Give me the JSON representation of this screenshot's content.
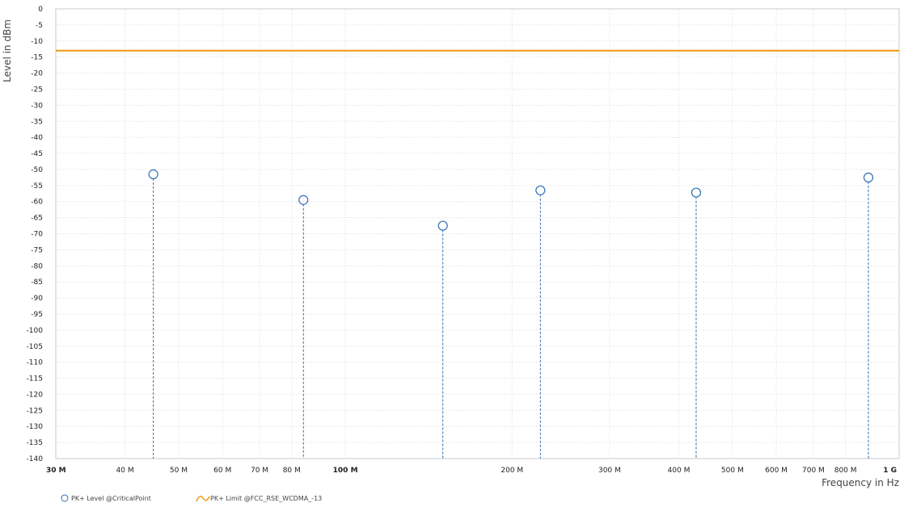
{
  "chart_data": {
    "type": "scatter",
    "x_scale": "log",
    "ylabel": "Level in dBm",
    "xlabel": "Frequency in Hz",
    "xlim": [
      30000000,
      1000000000
    ],
    "ylim": [
      -140,
      0
    ],
    "y_ticks": [
      0,
      -5,
      -10,
      -15,
      -20,
      -25,
      -30,
      -35,
      -40,
      -45,
      -50,
      -55,
      -60,
      -65,
      -70,
      -75,
      -80,
      -85,
      -90,
      -95,
      -100,
      -105,
      -110,
      -115,
      -120,
      -125,
      -130,
      -135,
      -140
    ],
    "x_ticks": [
      {
        "value": 30000000,
        "label": "30 M",
        "bold": true
      },
      {
        "value": 40000000,
        "label": "40 M"
      },
      {
        "value": 50000000,
        "label": "50 M"
      },
      {
        "value": 60000000,
        "label": "60 M"
      },
      {
        "value": 70000000,
        "label": "70 M"
      },
      {
        "value": 80000000,
        "label": "80 M"
      },
      {
        "value": 100000000,
        "label": "100 M",
        "bold": true
      },
      {
        "value": 200000000,
        "label": "200 M"
      },
      {
        "value": 300000000,
        "label": "300 M"
      },
      {
        "value": 400000000,
        "label": "400 M"
      },
      {
        "value": 500000000,
        "label": "500 M"
      },
      {
        "value": 600000000,
        "label": "600 M"
      },
      {
        "value": 700000000,
        "label": "700 M"
      },
      {
        "value": 800000000,
        "label": "800 M"
      },
      {
        "value": 1000000000,
        "label": "1 G",
        "bold": true
      }
    ],
    "grid": true,
    "series": [
      {
        "name": "PK+ Level @CriticalPoint",
        "kind": "critical-points",
        "color": "#2e6fb4",
        "points": [
          {
            "x": 45000000,
            "y": -51.5
          },
          {
            "x": 84000000,
            "y": -59.5
          },
          {
            "x": 150000000,
            "y": -67.5
          },
          {
            "x": 225000000,
            "y": -56.5
          },
          {
            "x": 430000000,
            "y": -57.2
          },
          {
            "x": 880000000,
            "y": -52.5
          }
        ]
      },
      {
        "name": "PK+ Limit @FCC_RSE_WCDMA_-13",
        "kind": "limit-line",
        "color": "#f0960a",
        "points": [
          {
            "x": 30000000,
            "y": -13
          },
          {
            "x": 1000000000,
            "y": -13
          }
        ]
      }
    ],
    "legend_placement": "bottom-left"
  }
}
